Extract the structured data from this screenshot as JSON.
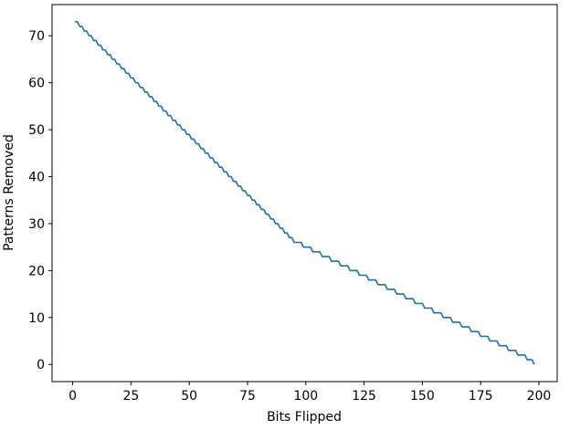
{
  "chart_data": {
    "type": "line",
    "x_label": "Bits Flipped",
    "y_label": "Patterns Removed",
    "color": "#1f6fa8",
    "x": [
      1,
      2,
      3,
      4,
      5,
      6,
      7,
      8,
      9,
      10,
      11,
      12,
      13,
      14,
      15,
      16,
      17,
      18,
      19,
      20,
      21,
      22,
      23,
      24,
      25,
      26,
      27,
      28,
      29,
      30,
      31,
      32,
      33,
      34,
      35,
      36,
      37,
      38,
      39,
      40,
      41,
      42,
      43,
      44,
      45,
      46,
      47,
      48,
      49,
      50,
      51,
      52,
      53,
      54,
      55,
      56,
      57,
      58,
      59,
      60,
      61,
      62,
      63,
      64,
      65,
      66,
      67,
      68,
      69,
      70,
      71,
      72,
      73,
      74,
      75,
      76,
      77,
      78,
      79,
      80,
      81,
      82,
      83,
      84,
      85,
      86,
      87,
      88,
      89,
      90,
      91,
      92,
      93,
      94,
      95,
      96,
      97,
      98,
      99,
      100,
      101,
      102,
      103,
      104,
      105,
      106,
      107,
      108,
      109,
      110,
      111,
      112,
      113,
      114,
      115,
      116,
      117,
      118,
      119,
      120,
      121,
      122,
      123,
      124,
      125,
      126,
      127,
      128,
      129,
      130,
      131,
      132,
      133,
      134,
      135,
      136,
      137,
      138,
      139,
      140,
      141,
      142,
      143,
      144,
      145,
      146,
      147,
      148,
      149,
      150,
      151,
      152,
      153,
      154,
      155,
      156,
      157,
      158,
      159,
      160,
      161,
      162,
      163,
      164,
      165,
      166,
      167,
      168,
      169,
      170,
      171,
      172,
      173,
      174,
      175,
      176,
      177,
      178,
      179,
      180,
      181,
      182,
      183,
      184,
      185,
      186,
      187,
      188,
      189,
      190,
      191,
      192,
      193,
      194,
      195,
      196,
      197,
      198
    ],
    "values": [
      73,
      73,
      72,
      72,
      71,
      71,
      70,
      70,
      69,
      69,
      68,
      68,
      67,
      67,
      66,
      66,
      65,
      65,
      64,
      64,
      63,
      63,
      62,
      62,
      61,
      61,
      60,
      60,
      59,
      59,
      58,
      58,
      57,
      57,
      56,
      56,
      55,
      55,
      54,
      54,
      53,
      53,
      52,
      52,
      51,
      51,
      50,
      50,
      49,
      49,
      48,
      48,
      47,
      47,
      46,
      46,
      45,
      45,
      44,
      44,
      43,
      43,
      42,
      42,
      41,
      41,
      40,
      40,
      39,
      39,
      38,
      38,
      37,
      37,
      36,
      36,
      35,
      35,
      34,
      34,
      33,
      33,
      32,
      32,
      31,
      31,
      30,
      30,
      29,
      29,
      28,
      28,
      27,
      27,
      26,
      26,
      26,
      26,
      25,
      25,
      25,
      25,
      24,
      24,
      24,
      24,
      23,
      23,
      23,
      23,
      22,
      22,
      22,
      22,
      21,
      21,
      21,
      21,
      20,
      20,
      20,
      20,
      19,
      19,
      19,
      19,
      18,
      18,
      18,
      18,
      17,
      17,
      17,
      17,
      16,
      16,
      16,
      16,
      15,
      15,
      15,
      15,
      14,
      14,
      14,
      14,
      13,
      13,
      13,
      13,
      12,
      12,
      12,
      12,
      11,
      11,
      11,
      11,
      10,
      10,
      10,
      10,
      9,
      9,
      9,
      9,
      8,
      8,
      8,
      8,
      7,
      7,
      7,
      7,
      6,
      6,
      6,
      6,
      5,
      5,
      5,
      5,
      4,
      4,
      4,
      4,
      3,
      3,
      3,
      3,
      2,
      2,
      2,
      2,
      1,
      1,
      1,
      0
    ],
    "xlim": [
      -8.85,
      207.85
    ],
    "ylim": [
      -3.65,
      76.65
    ],
    "xticks": [
      0,
      25,
      50,
      75,
      100,
      125,
      150,
      175,
      200
    ],
    "yticks": [
      0,
      10,
      20,
      30,
      40,
      50,
      60,
      70
    ]
  }
}
